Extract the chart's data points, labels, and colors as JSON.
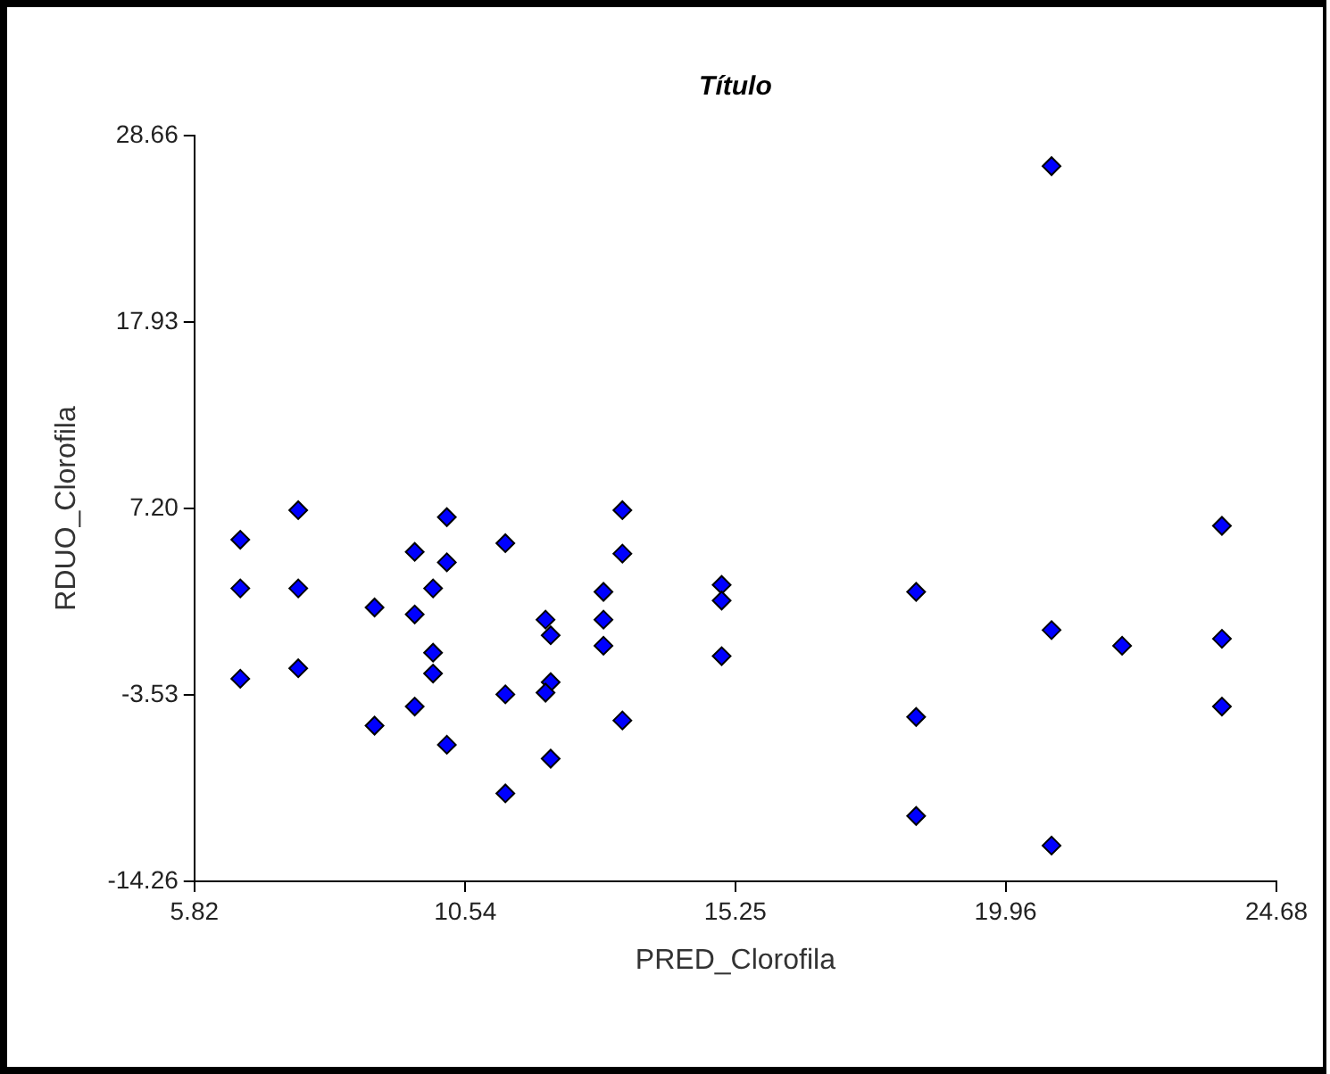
{
  "chart_data": {
    "type": "scatter",
    "title": "Título",
    "xlabel": "PRED_Clorofila",
    "ylabel": "RDUO_Clorofila",
    "marker": "diamond",
    "xlim": [
      5.82,
      24.68
    ],
    "xticks": [
      5.82,
      10.54,
      15.25,
      19.96,
      24.68
    ],
    "ylim": [
      -14.26,
      28.66
    ],
    "yticks": [
      -14.26,
      -3.53,
      {
        "value": 7.2,
        "label": "7.20"
      },
      17.93,
      28.66
    ],
    "series": [
      {
        "color": "#0000ff",
        "x": [
          7.63,
          6.62,
          6.62,
          7.63,
          6.62,
          7.63,
          10.22,
          9.66,
          10.22,
          11.24,
          9.98,
          8.96,
          9.66,
          9.98,
          9.98,
          9.66,
          8.96,
          10.22,
          11.24,
          11.24,
          11.94,
          12.03,
          12.03,
          11.94,
          12.03,
          13.28,
          13.28,
          12.95,
          12.95,
          12.95,
          13.28,
          15.01,
          15.01,
          15.01,
          20.76,
          23.73,
          18.4,
          20.76,
          21.99,
          23.73,
          23.73,
          18.4,
          18.4,
          20.76
        ],
        "values": [
          7.1,
          5.4,
          2.6,
          2.6,
          -2.6,
          -2.0,
          6.7,
          4.7,
          4.1,
          5.2,
          2.6,
          1.5,
          1.1,
          -1.1,
          -2.3,
          -4.2,
          -5.3,
          -6.4,
          -3.5,
          -9.2,
          0.8,
          -0.1,
          -2.8,
          -3.4,
          -7.2,
          7.1,
          4.6,
          2.4,
          0.8,
          -0.7,
          -5.0,
          2.8,
          1.9,
          -1.3,
          26.9,
          6.2,
          2.4,
          0.2,
          -0.7,
          -0.3,
          -4.2,
          -4.8,
          -10.5,
          -12.2
        ]
      }
    ]
  }
}
